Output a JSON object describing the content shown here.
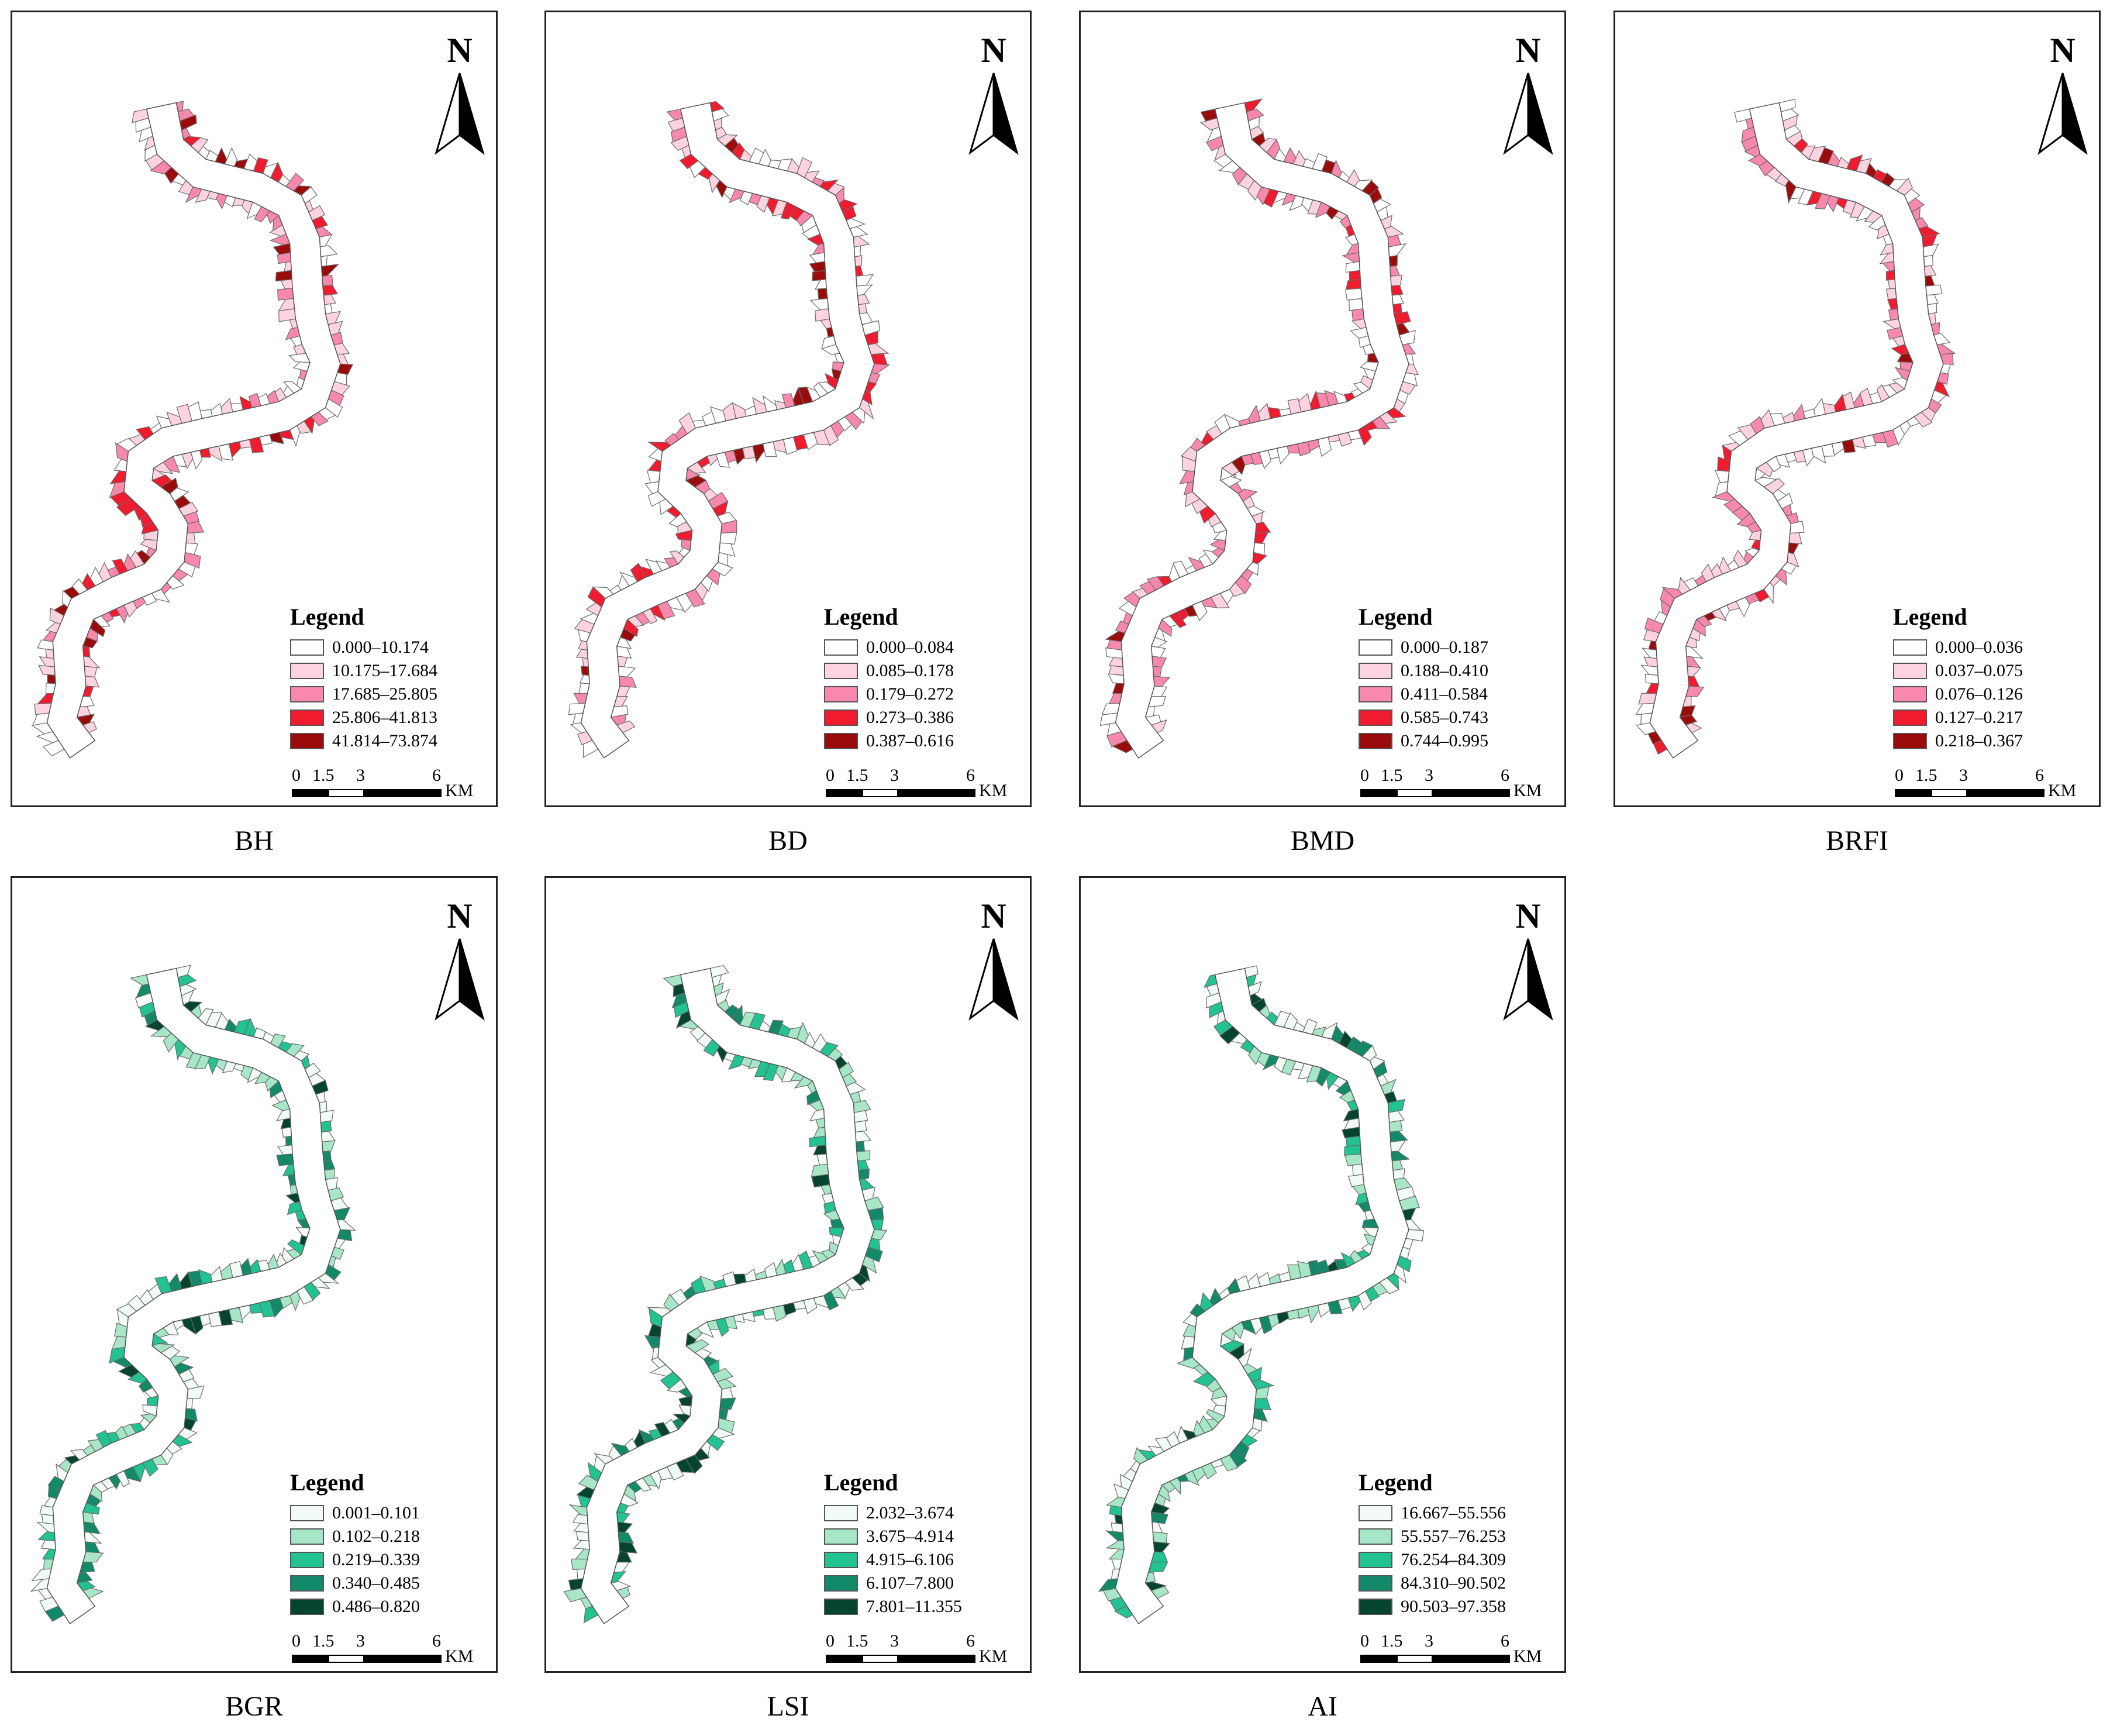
{
  "legend_title": "Legend",
  "north_label": "N",
  "scale": {
    "ticks": [
      "0",
      "1.5",
      "3",
      "6"
    ],
    "unit": "KM"
  },
  "panels": [
    {
      "caption": "BH",
      "colors": [
        "#ffffff",
        "#fdd3df",
        "#f889ad",
        "#f01b2f",
        "#9a0c0c"
      ],
      "classes": [
        "0.000–10.174",
        "10.175–17.684",
        "17.685–25.805",
        "25.806–41.813",
        "41.814–73.874"
      ]
    },
    {
      "caption": "BD",
      "colors": [
        "#ffffff",
        "#fdd3df",
        "#f889ad",
        "#f01b2f",
        "#9a0c0c"
      ],
      "classes": [
        "0.000–0.084",
        "0.085–0.178",
        "0.179–0.272",
        "0.273–0.386",
        "0.387–0.616"
      ]
    },
    {
      "caption": "BMD",
      "colors": [
        "#ffffff",
        "#fdd3df",
        "#f889ad",
        "#f01b2f",
        "#9a0c0c"
      ],
      "classes": [
        "0.000–0.187",
        "0.188–0.410",
        "0.411–0.584",
        "0.585–0.743",
        "0.744–0.995"
      ]
    },
    {
      "caption": "BRFI",
      "colors": [
        "#ffffff",
        "#fdd3df",
        "#f889ad",
        "#f01b2f",
        "#9a0c0c"
      ],
      "classes": [
        "0.000–0.036",
        "0.037–0.075",
        "0.076–0.126",
        "0.127–0.217",
        "0.218–0.367"
      ]
    },
    {
      "caption": "BGR",
      "colors": [
        "#f2fbf6",
        "#a7e6c6",
        "#22c292",
        "#128a6a",
        "#05442f"
      ],
      "classes": [
        "0.001–0.101",
        "0.102–0.218",
        "0.219–0.339",
        "0.340–0.485",
        "0.486–0.820"
      ]
    },
    {
      "caption": "LSI",
      "colors": [
        "#f2fbf6",
        "#a7e6c6",
        "#22c292",
        "#128a6a",
        "#05442f"
      ],
      "classes": [
        "2.032–3.674",
        "3.675–4.914",
        "4.915–6.106",
        "6.107–7.800",
        "7.801–11.355"
      ]
    },
    {
      "caption": "AI",
      "colors": [
        "#f2fbf6",
        "#a7e6c6",
        "#22c292",
        "#128a6a",
        "#05442f"
      ],
      "classes": [
        "16.667–55.556",
        "55.557–76.253",
        "76.254–84.309",
        "84.310–90.502",
        "90.503–97.358"
      ]
    }
  ]
}
